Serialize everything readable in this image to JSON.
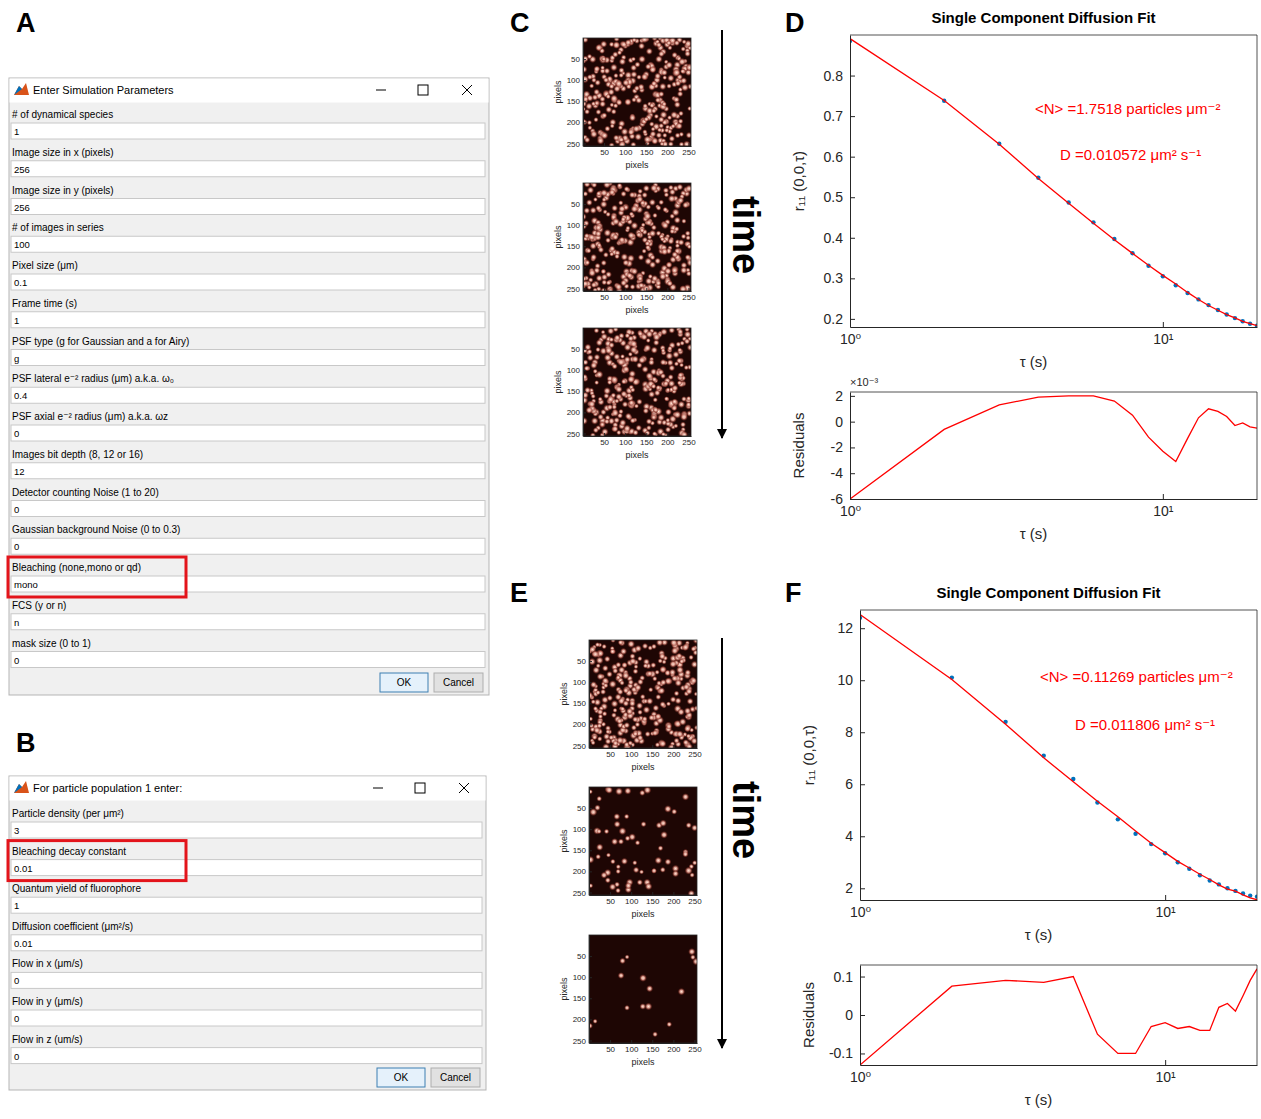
{
  "dialogs": [
    {
      "panel": "A",
      "title": "Enter Simulation Parameters",
      "fields": [
        {
          "label": "# of dynamical species",
          "value": "1"
        },
        {
          "label": "Image size in x (pixels)",
          "value": "256"
        },
        {
          "label": "Image size in y (pixels)",
          "value": "256"
        },
        {
          "label": "# of images in series",
          "value": "100"
        },
        {
          "label": "Pixel size (μm)",
          "value": "0.1"
        },
        {
          "label": "Frame time (s)",
          "value": "1"
        },
        {
          "label": "PSF type (g for Gaussian and a for Airy)",
          "value": "g"
        },
        {
          "label": "PSF lateral e⁻² radius (μm) a.k.a. ω₀",
          "value": "0.4"
        },
        {
          "label": "PSF axial e⁻² radius (μm) a.k.a. ωz",
          "value": "0"
        },
        {
          "label": "Images bit depth (8, 12 or 16)",
          "value": "12"
        },
        {
          "label": "Detector counting Noise (1 to 20)",
          "value": "0"
        },
        {
          "label": "Gaussian background Noise (0 to 0.3)",
          "value": "0"
        },
        {
          "label": "Bleaching (none,mono or qd)",
          "value": "mono",
          "highlighted": true
        },
        {
          "label": "FCS (y or n)",
          "value": "n"
        },
        {
          "label": "mask size (0 to 1)",
          "value": "0"
        }
      ],
      "buttons": [
        "OK",
        "Cancel"
      ]
    },
    {
      "panel": "B",
      "title": "For particle population 1 enter:",
      "fields": [
        {
          "label": "Particle density (per μm²)",
          "value": "3"
        },
        {
          "label": "Bleaching decay constant",
          "value": "0.01",
          "highlighted": true
        },
        {
          "label": "Quantum yield of fluorophore",
          "value": "1"
        },
        {
          "label": "Diffusion coefficient (μm²/s)",
          "value": "0.01"
        },
        {
          "label": "Flow in x (μm/s)",
          "value": "0"
        },
        {
          "label": "Flow in y (μm/s)",
          "value": "0"
        },
        {
          "label": "Flow in z (um/s)",
          "value": "0"
        }
      ],
      "buttons": [
        "OK",
        "Cancel"
      ]
    }
  ],
  "image_series": [
    {
      "panel": "C",
      "label": "time",
      "frames": [
        {
          "xlabel": "pixels",
          "ylabel": "pixels",
          "xlim": [
            0,
            256
          ],
          "ylim": [
            0,
            256
          ],
          "xticks": [
            50,
            100,
            150,
            200,
            250
          ],
          "yticks": [
            50,
            100,
            150,
            200,
            250
          ]
        },
        {
          "xlabel": "pixels",
          "ylabel": "pixels",
          "xlim": [
            0,
            256
          ],
          "ylim": [
            0,
            256
          ],
          "xticks": [
            50,
            100,
            150,
            200,
            250
          ],
          "yticks": [
            50,
            100,
            150,
            200,
            250
          ]
        },
        {
          "xlabel": "pixels",
          "ylabel": "pixels",
          "xlim": [
            0,
            256
          ],
          "ylim": [
            0,
            256
          ],
          "xticks": [
            50,
            100,
            150,
            200,
            250
          ],
          "yticks": [
            50,
            100,
            150,
            200,
            250
          ]
        }
      ]
    },
    {
      "panel": "E",
      "label": "time",
      "frames": [
        {
          "xlabel": "pixels",
          "ylabel": "pixels",
          "xlim": [
            0,
            256
          ],
          "ylim": [
            0,
            256
          ],
          "xticks": [
            50,
            100,
            150,
            200,
            250
          ],
          "yticks": [
            50,
            100,
            150,
            200,
            250
          ]
        },
        {
          "xlabel": "pixels",
          "ylabel": "pixels",
          "xlim": [
            0,
            256
          ],
          "ylim": [
            0,
            256
          ],
          "xticks": [
            50,
            100,
            150,
            200,
            250
          ],
          "yticks": [
            50,
            100,
            150,
            200,
            250
          ]
        },
        {
          "xlabel": "pixels",
          "ylabel": "pixels",
          "xlim": [
            0,
            256
          ],
          "ylim": [
            0,
            256
          ],
          "xticks": [
            50,
            100,
            150,
            200,
            250
          ],
          "yticks": [
            50,
            100,
            150,
            200,
            250
          ]
        }
      ]
    }
  ],
  "chart_data": [
    {
      "type": "line",
      "panel": "D",
      "title": "Single Component Diffusion Fit",
      "xlabel": "τ (s)",
      "ylabel": "r₁₁ (0,0,τ)",
      "log": "x",
      "x": [
        1,
        2,
        3,
        4,
        5,
        6,
        7,
        8,
        9,
        10,
        11,
        12,
        13,
        14,
        15,
        16,
        17,
        18,
        19,
        20
      ],
      "xlim": [
        1,
        20
      ],
      "xticks": [
        {
          "value": 1,
          "label": "10⁰"
        },
        {
          "value": 10,
          "label": "10¹"
        }
      ],
      "ylim": [
        0.18,
        0.9
      ],
      "yticks": [
        0.2,
        0.3,
        0.4,
        0.5,
        0.6,
        0.7,
        0.8
      ],
      "series": [
        {
          "type": "scatter",
          "color": "#0072bd",
          "marker": "dot",
          "values": [
            0.885,
            0.738,
            0.632,
            0.548,
            0.487,
            0.438,
            0.397,
            0.362,
            0.331,
            0.305,
            0.283,
            0.264,
            0.248,
            0.234,
            0.222,
            0.211,
            0.202,
            0.194,
            0.188,
            0.183
          ]
        },
        {
          "type": "line",
          "color": "#ff0000",
          "line_style": "solid",
          "values": [
            0.891,
            0.7386,
            0.6307,
            0.5461,
            0.485,
            0.436,
            0.3954,
            0.3615,
            0.3322,
            0.3073,
            0.2861,
            0.2653,
            0.2477,
            0.233,
            0.2212,
            0.2106,
            0.2023,
            0.1941,
            0.1884,
            0.1835
          ]
        }
      ],
      "annotations": [
        "<N> =1.7518 particles μm⁻²",
        "D =0.010572 μm² s⁻¹"
      ]
    },
    {
      "type": "line",
      "xlabel": "τ (s)",
      "ylabel": "Residuals",
      "log": "x",
      "x": [
        1,
        2,
        3,
        4,
        5,
        6,
        7,
        8,
        9,
        10,
        11,
        12,
        13,
        14,
        15,
        16,
        17,
        18,
        19,
        20
      ],
      "xlim": [
        1,
        20
      ],
      "xticks": [
        {
          "value": 1,
          "label": "10⁰"
        },
        {
          "value": 10,
          "label": "10¹"
        }
      ],
      "ylim": [
        -6,
        2.3
      ],
      "yticks": [
        -6,
        -4,
        -2,
        0,
        2
      ],
      "series": [
        {
          "type": "line",
          "color": "#ff0000",
          "line_style": "solid",
          "values": [
            -6,
            -0.6,
            1.3,
            1.9,
            2.0,
            2.0,
            1.6,
            0.5,
            -1.2,
            -2.3,
            -3.1,
            -1.3,
            0.3,
            1.0,
            0.8,
            0.4,
            -0.3,
            -0.1,
            -0.4,
            -0.5
          ]
        }
      ],
      "annotations": [
        "×10⁻³"
      ]
    },
    {
      "type": "line",
      "panel": "F",
      "title": "Single Component Diffusion Fit",
      "xlabel": "τ (s)",
      "ylabel": "r₁₁ (0,0,τ)",
      "log": "x",
      "x": [
        1,
        2,
        3,
        4,
        5,
        6,
        7,
        8,
        9,
        10,
        11,
        12,
        13,
        14,
        15,
        16,
        17,
        18,
        19,
        20
      ],
      "xlim": [
        1,
        20
      ],
      "xticks": [
        {
          "value": 1,
          "label": "10⁰"
        },
        {
          "value": 10,
          "label": "10¹"
        }
      ],
      "ylim": [
        1.55,
        12.7
      ],
      "yticks": [
        2,
        4,
        6,
        8,
        10,
        12
      ],
      "series": [
        {
          "type": "scatter",
          "color": "#0072bd",
          "marker": "dot",
          "values": [
            12.4,
            10.1,
            8.4,
            7.1,
            6.2,
            5.3,
            4.65,
            4.1,
            3.7,
            3.35,
            3.0,
            2.75,
            2.5,
            2.3,
            2.15,
            2.0,
            1.9,
            1.8,
            1.72,
            1.68
          ]
        },
        {
          "type": "line",
          "color": "#ff0000",
          "line_style": "solid",
          "values": [
            12.53,
            10.025,
            8.31,
            7.015,
            6.1,
            5.35,
            4.75,
            4.2,
            3.73,
            3.37,
            3.035,
            2.78,
            2.54,
            2.34,
            2.13,
            1.97,
            1.89,
            1.75,
            1.63,
            1.56
          ]
        }
      ],
      "annotations": [
        "<N> =0.11269 particles μm⁻²",
        "D =0.011806 μm² s⁻¹"
      ]
    },
    {
      "type": "line",
      "xlabel": "τ (s)",
      "ylabel": "Residuals",
      "log": "x",
      "x": [
        1,
        2,
        3,
        4,
        5,
        6,
        7,
        8,
        9,
        10,
        11,
        12,
        13,
        14,
        15,
        16,
        17,
        18,
        19,
        20
      ],
      "xlim": [
        1,
        20
      ],
      "xticks": [
        {
          "value": 1,
          "label": "10⁰"
        },
        {
          "value": 10,
          "label": "10¹"
        }
      ],
      "ylim": [
        -0.13,
        0.13
      ],
      "yticks": [
        -0.1,
        0,
        0.1
      ],
      "series": [
        {
          "type": "line",
          "color": "#ff0000",
          "line_style": "solid",
          "values": [
            -0.13,
            0.075,
            0.09,
            0.085,
            0.1,
            -0.05,
            -0.1,
            -0.1,
            -0.03,
            -0.02,
            -0.035,
            -0.03,
            -0.04,
            -0.04,
            0.02,
            0.03,
            0.01,
            0.05,
            0.09,
            0.12
          ]
        }
      ]
    }
  ]
}
